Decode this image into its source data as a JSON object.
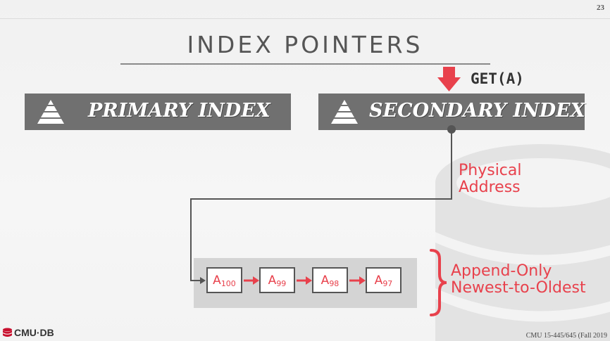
{
  "slide": {
    "number": "23",
    "title": "INDEX POINTERS",
    "footer_course": "CMU 15-445/645 (Fall 2019"
  },
  "logo": {
    "text": "CMU·DB",
    "icon": "database-logo-icon"
  },
  "primary_index": {
    "label": "PRIMARY INDEX",
    "icon": "pyramid-icon"
  },
  "secondary_index": {
    "label": "SECONDARY INDEX",
    "icon": "pyramid-icon"
  },
  "query": {
    "label": "GET(A)",
    "arrow_color": "#e8414c"
  },
  "pointer_label": {
    "line1": "Physical",
    "line2": "Address"
  },
  "chain": {
    "nodes": [
      {
        "base": "A",
        "version": "100"
      },
      {
        "base": "A",
        "version": "99"
      },
      {
        "base": "A",
        "version": "98"
      },
      {
        "base": "A",
        "version": "97"
      }
    ]
  },
  "chain_label": {
    "line1": "Append-Only",
    "line2": "Newest-to-Oldest"
  },
  "colors": {
    "accent": "#e8414c",
    "box": "#707070",
    "chain_bg": "#d4d4d4"
  }
}
